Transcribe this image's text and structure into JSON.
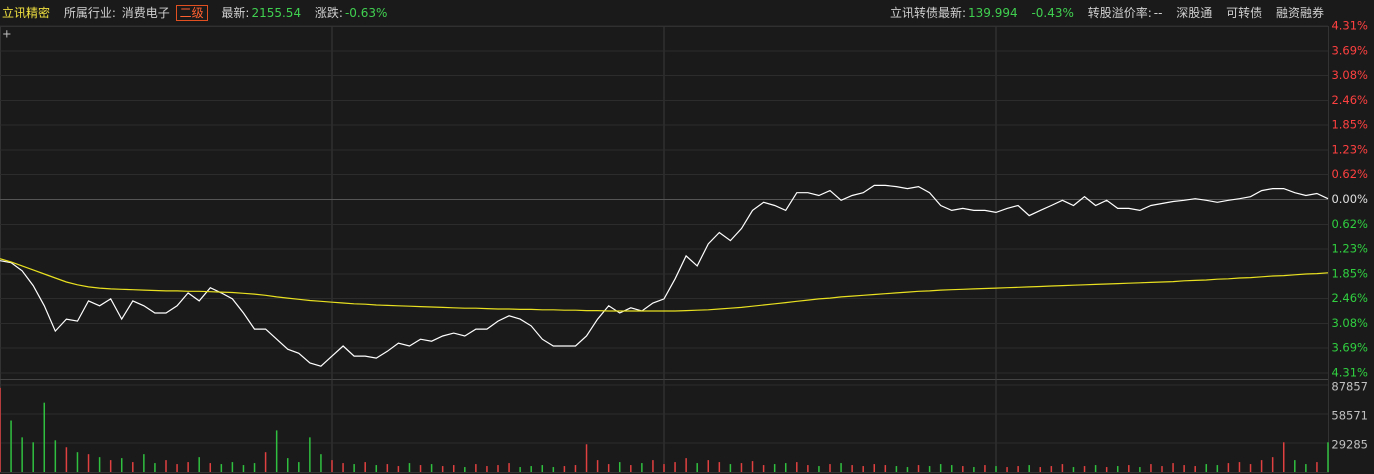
{
  "header": {
    "stock": "立讯精密",
    "industry_label": "所属行业:",
    "industry": "消费电子",
    "level": "二级",
    "latest_label": "最新:",
    "latest": "2155.54",
    "change_label": "涨跌:",
    "change": "-0.63%",
    "bond_label": "立讯转债最新:",
    "bond_price": "139.994",
    "bond_change": "-0.43%",
    "premium_label": "转股溢价率:",
    "premium": "--",
    "links": [
      "深股通",
      "可转债",
      "融资融券"
    ],
    "cursor": "+"
  },
  "chart_data": [
    {
      "type": "line",
      "ylim": [
        -4.31,
        4.31
      ],
      "yticks": [
        {
          "value": 4.31,
          "label": "4.31%"
        },
        {
          "value": 3.69,
          "label": "3.69%"
        },
        {
          "value": 3.08,
          "label": "3.08%"
        },
        {
          "value": 2.46,
          "label": "2.46%"
        },
        {
          "value": 1.85,
          "label": "1.85%"
        },
        {
          "value": 1.23,
          "label": "1.23%"
        },
        {
          "value": 0.62,
          "label": "0.62%"
        },
        {
          "value": 0,
          "label": "0.00%"
        },
        {
          "value": -0.62,
          "label": "0.62%"
        },
        {
          "value": -1.23,
          "label": "1.23%"
        },
        {
          "value": -1.85,
          "label": "1.85%"
        },
        {
          "value": -2.46,
          "label": "2.46%"
        },
        {
          "value": -3.08,
          "label": "3.08%"
        },
        {
          "value": -3.69,
          "label": "3.69%"
        },
        {
          "value": -4.31,
          "label": "4.31%"
        }
      ],
      "up_color": "#ff4040",
      "down_color": "#30d040",
      "zero_color": "#e0e0e0",
      "series": [
        {
          "color": "#ffffff",
          "values": [
            -1.52,
            -1.57,
            -1.77,
            -2.14,
            -2.64,
            -3.27,
            -2.97,
            -3.02,
            -2.52,
            -2.64,
            -2.47,
            -2.97,
            -2.52,
            -2.64,
            -2.82,
            -2.82,
            -2.64,
            -2.32,
            -2.52,
            -2.19,
            -2.32,
            -2.47,
            -2.82,
            -3.22,
            -3.22,
            -3.47,
            -3.72,
            -3.82,
            -4.06,
            -4.14,
            -3.89,
            -3.64,
            -3.89,
            -3.89,
            -3.94,
            -3.77,
            -3.57,
            -3.64,
            -3.47,
            -3.52,
            -3.39,
            -3.32,
            -3.39,
            -3.22,
            -3.22,
            -3.02,
            -2.89,
            -2.97,
            -3.14,
            -3.47,
            -3.64,
            -3.64,
            -3.64,
            -3.39,
            -2.97,
            -2.64,
            -2.82,
            -2.69,
            -2.77,
            -2.57,
            -2.47,
            -1.97,
            -1.4,
            -1.65,
            -1.1,
            -0.82,
            -1.02,
            -0.72,
            -0.27,
            -0.07,
            -0.15,
            -0.27,
            0.17,
            0.17,
            0.1,
            0.22,
            -0.02,
            0.1,
            0.17,
            0.35,
            0.35,
            0.32,
            0.27,
            0.32,
            0.17,
            -0.15,
            -0.27,
            -0.22,
            -0.27,
            -0.27,
            -0.32,
            -0.22,
            -0.15,
            -0.4,
            -0.27,
            -0.15,
            -0.02,
            -0.15,
            0.07,
            -0.15,
            -0.02,
            -0.22,
            -0.22,
            -0.27,
            -0.15,
            -0.1,
            -0.05,
            -0.02,
            0.02,
            -0.02,
            -0.07,
            -0.02,
            0.02,
            0.07,
            0.22,
            0.27,
            0.27,
            0.17,
            0.1,
            0.15,
            0.02
          ]
        },
        {
          "color": "#e8e020",
          "values": [
            -1.47,
            -1.55,
            -1.65,
            -1.75,
            -1.85,
            -1.95,
            -2.05,
            -2.12,
            -2.17,
            -2.2,
            -2.22,
            -2.23,
            -2.24,
            -2.25,
            -2.26,
            -2.27,
            -2.27,
            -2.28,
            -2.28,
            -2.29,
            -2.3,
            -2.31,
            -2.33,
            -2.35,
            -2.38,
            -2.42,
            -2.45,
            -2.48,
            -2.51,
            -2.53,
            -2.55,
            -2.57,
            -2.59,
            -2.6,
            -2.62,
            -2.63,
            -2.64,
            -2.65,
            -2.66,
            -2.67,
            -2.68,
            -2.69,
            -2.7,
            -2.7,
            -2.71,
            -2.72,
            -2.72,
            -2.73,
            -2.73,
            -2.74,
            -2.74,
            -2.75,
            -2.75,
            -2.76,
            -2.76,
            -2.77,
            -2.77,
            -2.77,
            -2.77,
            -2.77,
            -2.77,
            -2.77,
            -2.76,
            -2.75,
            -2.74,
            -2.72,
            -2.7,
            -2.68,
            -2.65,
            -2.62,
            -2.59,
            -2.56,
            -2.53,
            -2.5,
            -2.47,
            -2.45,
            -2.42,
            -2.4,
            -2.38,
            -2.36,
            -2.34,
            -2.32,
            -2.3,
            -2.28,
            -2.27,
            -2.25,
            -2.24,
            -2.23,
            -2.22,
            -2.21,
            -2.2,
            -2.19,
            -2.18,
            -2.17,
            -2.16,
            -2.15,
            -2.14,
            -2.13,
            -2.12,
            -2.11,
            -2.1,
            -2.09,
            -2.08,
            -2.07,
            -2.06,
            -2.05,
            -2.04,
            -2.02,
            -2.01,
            -2.0,
            -1.98,
            -1.97,
            -1.95,
            -1.94,
            -1.92,
            -1.9,
            -1.89,
            -1.87,
            -1.85,
            -1.84,
            -1.82
          ]
        }
      ]
    },
    {
      "type": "bar",
      "ylim": [
        0,
        87857
      ],
      "yticks": [
        87857,
        58571,
        29285
      ],
      "up_color": "#e04040",
      "down_color": "#30c040",
      "values": [
        85000,
        52000,
        35000,
        30000,
        70000,
        32000,
        25000,
        20000,
        18000,
        15000,
        12000,
        14000,
        10000,
        18000,
        9000,
        12000,
        8000,
        10000,
        15000,
        9000,
        8000,
        10000,
        7000,
        9000,
        20000,
        42000,
        14000,
        10000,
        35000,
        18000,
        12000,
        9000,
        8000,
        10000,
        7000,
        8000,
        6000,
        9000,
        7000,
        8000,
        6000,
        7000,
        5000,
        8000,
        6000,
        7000,
        9000,
        5000,
        6000,
        7000,
        5000,
        6000,
        7000,
        28000,
        12000,
        8000,
        10000,
        7000,
        9000,
        12000,
        8000,
        10000,
        14000,
        9000,
        12000,
        10000,
        8000,
        9000,
        11000,
        7000,
        8000,
        9000,
        10000,
        7000,
        6000,
        8000,
        9000,
        7000,
        6000,
        8000,
        7000,
        6000,
        5000,
        7000,
        6000,
        8000,
        7000,
        6000,
        5000,
        7000,
        6000,
        5000,
        6000,
        7000,
        5000,
        6000,
        8000,
        5000,
        6000,
        7000,
        5000,
        6000,
        7000,
        5000,
        8000,
        6000,
        9000,
        7000,
        6000,
        8000,
        7000,
        9000,
        10000,
        8000,
        12000,
        15000,
        30000,
        12000,
        8000,
        10000,
        30000
      ]
    }
  ]
}
